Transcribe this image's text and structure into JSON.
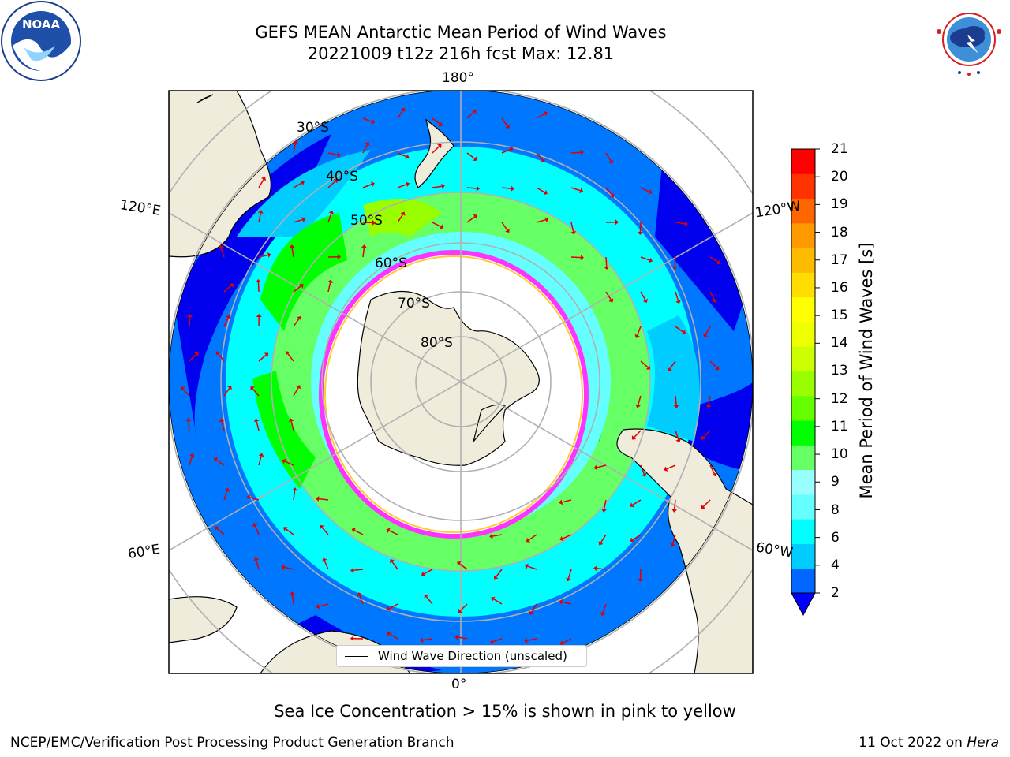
{
  "title": {
    "line1": "GEFS MEAN Antarctic Mean Period of Wind Waves",
    "line2": "20221009 t12z 216h fcst   Max: 12.81"
  },
  "map": {
    "projection": "south polar stereographic",
    "longitude_labels": [
      "180°",
      "0°",
      "120°E",
      "60°E",
      "120°W",
      "60°W"
    ],
    "latitude_labels": [
      "30°S",
      "40°S",
      "50°S",
      "60°S",
      "70°S",
      "80°S"
    ],
    "land_color": "#efecdc",
    "ice_edge_colors": [
      "#ff33ff",
      "#ffcc33"
    ]
  },
  "colorbar": {
    "label": "Mean Period of Wind Waves [s]",
    "ticks": [
      "21",
      "20",
      "19",
      "18",
      "17",
      "16",
      "15",
      "14",
      "13",
      "12",
      "11",
      "10",
      "9",
      "8",
      "6",
      "4",
      "2"
    ],
    "colors": [
      "#0000ff",
      "#0066ff",
      "#00ccff",
      "#00ffff",
      "#66ffff",
      "#99ffff",
      "#66ff66",
      "#00ff00",
      "#66ff00",
      "#99ff00",
      "#ccff00",
      "#eeff00",
      "#ffff00",
      "#ffdd00",
      "#ffbb00",
      "#ff9900",
      "#ff6600",
      "#ff3300",
      "#ff0000"
    ]
  },
  "legend": {
    "label": "Wind Wave Direction (unscaled)"
  },
  "footer": {
    "note": "Sea Ice Concentration > 15% is shown in pink to yellow",
    "credit": "NCEP/EMC/Verification Post Processing Product Generation Branch",
    "date": "11 Oct 2022 on",
    "machine": "Hera"
  },
  "logos": {
    "left": "noaa-logo",
    "right": "national-weather-service-logo"
  }
}
